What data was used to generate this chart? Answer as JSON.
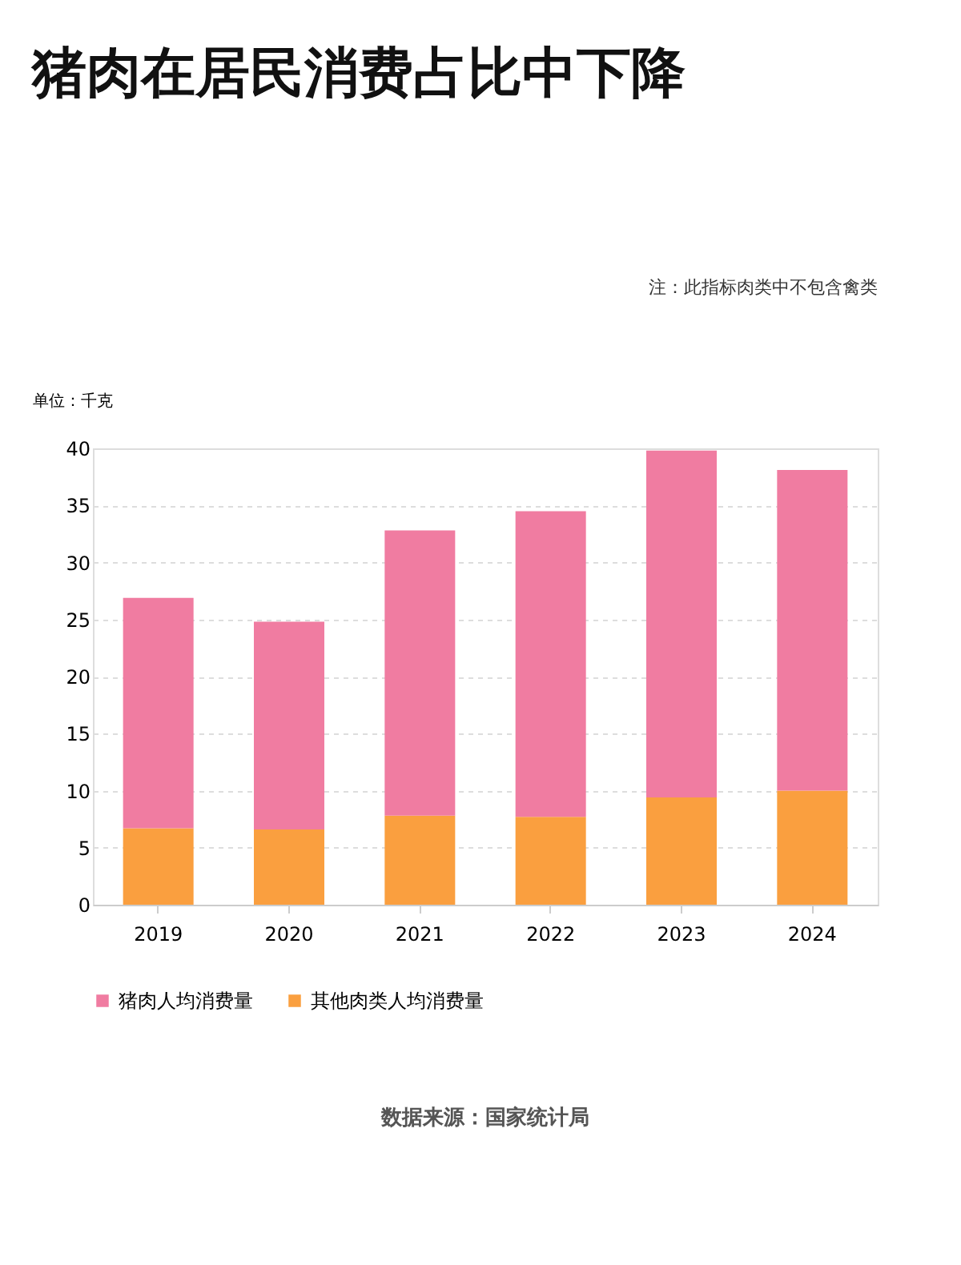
{
  "chart_data": {
    "type": "bar",
    "title": "猪肉在居民消费占比中下降",
    "ylabel": "单位：千克",
    "annotations": [
      "注：此指标肉类中不包含禽类",
      "数据来源：国家统计局"
    ],
    "categories": [
      "2019",
      "2020",
      "2021",
      "2022",
      "2023",
      "2024"
    ],
    "stacked": true,
    "series": [
      {
        "name": "其他肉类人均消费量",
        "color": "#fa9f3f",
        "values": [
          6.7,
          6.6,
          7.8,
          7.7,
          9.4,
          10.0
        ]
      },
      {
        "name": "猪肉人均消费量",
        "color": "#f07ca1",
        "values": [
          20.2,
          18.2,
          25.0,
          26.8,
          30.4,
          28.1
        ]
      }
    ],
    "ylim": [
      0,
      40
    ],
    "yticks": [
      0,
      5,
      10,
      15,
      20,
      25,
      30,
      35,
      40
    ],
    "grid": "y",
    "legend": "bottom"
  }
}
